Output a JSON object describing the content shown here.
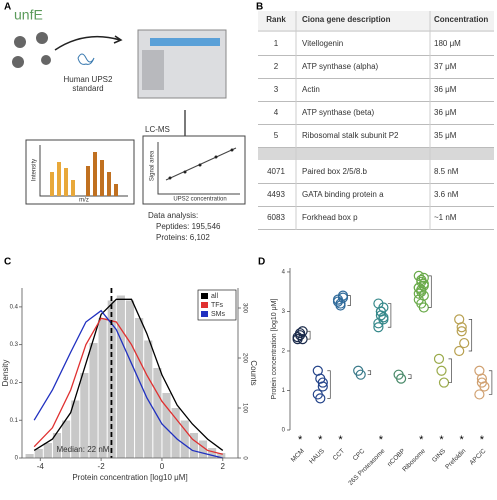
{
  "panel_labels": [
    "A",
    "B",
    "C",
    "D"
  ],
  "panel_a": {
    "sample": "unfE",
    "standard": [
      "Human UPS2",
      "standard"
    ],
    "instrument": "LC-MS",
    "spectrum_y": "Intensity",
    "spectrum_x": "m/z",
    "calib_y": "Signal area",
    "calib_x": "UPS2 concentration",
    "analysis": [
      "Data analysis:",
      "Peptides: 195,546",
      "Proteins: 6,102"
    ]
  },
  "table": {
    "header": [
      "Rank",
      "Ciona gene description",
      "Concentration"
    ],
    "rows": [
      [
        "1",
        "Vitellogenin",
        "180 μM"
      ],
      [
        "2",
        "ATP synthase (alpha)",
        "37 μM"
      ],
      [
        "3",
        "Actin",
        "36 μM"
      ],
      [
        "4",
        "ATP synthase (beta)",
        "36 μM"
      ],
      [
        "5",
        "Ribosomal stalk subunit P2",
        "35 μM"
      ],
      [
        "4071",
        "Paired box 2/5/8.b",
        "8.5 nM"
      ],
      [
        "4493",
        "GATA binding protein a",
        "3.6 nM"
      ],
      [
        "6083",
        "Forkhead box p",
        "~1 nM"
      ]
    ]
  },
  "chart_c": {
    "type": "density",
    "xlabel": "Protein concentration [log10 μM]",
    "ylabel": "Density",
    "y2label": "Counts",
    "annotation": "Median: 22 nM",
    "median": -1.66,
    "xlim": [
      -4.6,
      2.5
    ],
    "xticks": [
      -4,
      -2,
      0,
      2
    ],
    "ylim": [
      0,
      0.45
    ],
    "yticks": [
      0,
      0.1,
      0.2,
      0.3,
      0.4
    ],
    "y2lim": [
      0,
      340
    ],
    "y2ticks": [
      0,
      100,
      200,
      300
    ],
    "legend": "top-right",
    "hist": {
      "color": "#c8c8c8",
      "bins": [
        -4.5,
        -4.2,
        -3.9,
        -3.6,
        -3.3,
        -3.0,
        -2.7,
        -2.4,
        -2.1,
        -1.8,
        -1.5,
        -1.2,
        -0.9,
        -0.6,
        -0.3,
        0,
        0.3,
        0.6,
        0.9,
        1.2,
        1.5,
        1.8,
        2.1
      ],
      "counts": [
        8,
        18,
        30,
        50,
        75,
        115,
        170,
        230,
        280,
        315,
        325,
        315,
        280,
        235,
        180,
        130,
        100,
        75,
        50,
        35,
        20,
        10
      ]
    },
    "series": [
      {
        "name": "all",
        "color": "#000000",
        "x": [
          -4.2,
          -3.6,
          -3.0,
          -2.5,
          -2.0,
          -1.5,
          -1.0,
          -0.5,
          0,
          0.5,
          1.0,
          1.5,
          2.0
        ],
        "values": [
          0.02,
          0.05,
          0.12,
          0.25,
          0.38,
          0.42,
          0.42,
          0.33,
          0.22,
          0.14,
          0.09,
          0.05,
          0.02
        ]
      },
      {
        "name": "TFs",
        "color": "#e03030",
        "x": [
          -4.2,
          -3.6,
          -3.0,
          -2.5,
          -2.0,
          -1.5,
          -1.0,
          -0.5,
          0,
          0.5,
          1.0,
          1.5,
          2.0
        ],
        "values": [
          0.03,
          0.08,
          0.18,
          0.3,
          0.37,
          0.36,
          0.3,
          0.22,
          0.15,
          0.1,
          0.05,
          0.02,
          0.01
        ]
      },
      {
        "name": "SMs",
        "color": "#2030c0",
        "x": [
          -4.2,
          -3.6,
          -3.0,
          -2.5,
          -2.0,
          -1.5,
          -1.0,
          -0.5,
          0,
          0.5,
          1.0,
          1.5,
          2.0
        ],
        "values": [
          0.1,
          0.18,
          0.28,
          0.36,
          0.39,
          0.34,
          0.25,
          0.16,
          0.09,
          0.05,
          0.02,
          0.01,
          0
        ]
      }
    ]
  },
  "chart_d": {
    "type": "dot",
    "ylabel": "Protein concentration [log10 μM]",
    "ylim": [
      0,
      4.1
    ],
    "yticks": [
      0,
      1,
      2,
      3,
      4
    ],
    "groups": [
      {
        "name": "MCM",
        "color": "#1a2a4a",
        "values": [
          2.3,
          2.4,
          2.5,
          2.35,
          2.45,
          2.3
        ],
        "mark": "*"
      },
      {
        "name": "HAUS",
        "color": "#24448a",
        "values": [
          1.5,
          1.3,
          1.1,
          0.9,
          0.8,
          1.2
        ],
        "mark": "*"
      },
      {
        "name": "CCT",
        "color": "#2f6a9a",
        "values": [
          3.3,
          3.2,
          3.4,
          3.25,
          3.15,
          3.35
        ],
        "mark": "*"
      },
      {
        "name": "CPC",
        "color": "#3a7a8a",
        "values": [
          1.5,
          1.4
        ],
        "mark": null
      },
      {
        "name": "26S Proteasome",
        "color": "#35888a",
        "values": [
          3.2,
          3.0,
          2.8,
          2.6,
          2.9,
          3.1,
          2.7,
          3.0,
          2.85
        ],
        "mark": "*"
      },
      {
        "name": "nCOBP",
        "color": "#4a8a6a",
        "values": [
          1.4,
          1.3
        ],
        "mark": null
      },
      {
        "name": "Ribosome",
        "color": "#6aaa4a",
        "values": [
          3.9,
          3.8,
          3.7,
          3.6,
          3.5,
          3.4,
          3.3,
          3.2,
          3.1,
          3.6,
          3.75,
          3.85,
          3.45,
          3.55,
          3.65
        ],
        "mark": "*"
      },
      {
        "name": "GINS",
        "color": "#9aaa4a",
        "values": [
          1.8,
          1.5,
          1.2
        ],
        "mark": "*"
      },
      {
        "name": "Prefoldin",
        "color": "#b8a050",
        "values": [
          2.8,
          2.5,
          2.2,
          2.0,
          2.6
        ],
        "mark": "*"
      },
      {
        "name": "APC/C",
        "color": "#d0a070",
        "values": [
          1.5,
          1.3,
          1.1,
          0.9,
          1.2
        ],
        "mark": "*"
      }
    ]
  }
}
